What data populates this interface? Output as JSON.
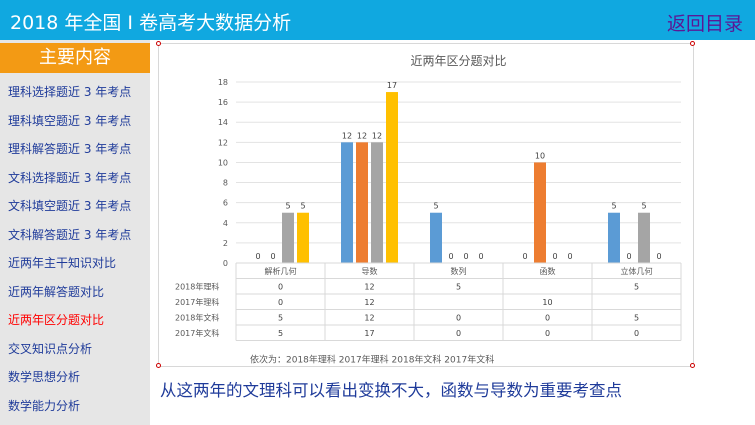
{
  "header": {
    "title": "2018 年全国 I 卷高考大数据分析",
    "back_label": "返回目录"
  },
  "sidebar": {
    "heading": "主要内容",
    "items": [
      {
        "label": "理科选择题近 3 年考点"
      },
      {
        "label": "理科填空题近 3 年考点"
      },
      {
        "label": "理科解答题近 3 年考点"
      },
      {
        "label": "文科选择题近 3 年考点"
      },
      {
        "label": "文科填空题近 3 年考点"
      },
      {
        "label": "文科解答题近 3 年考点"
      },
      {
        "label": "近两年主干知识对比"
      },
      {
        "label": "近两年解答题对比"
      },
      {
        "label": "近两年区分题对比",
        "active": true
      },
      {
        "label": "交叉知识点分析"
      },
      {
        "label": "数学思想分析"
      },
      {
        "label": "数学能力分析"
      }
    ]
  },
  "chart_data": {
    "type": "bar",
    "title": "近两年区分题对比",
    "categories": [
      "解析几何",
      "导数",
      "数列",
      "函数",
      "立体几何"
    ],
    "series": [
      {
        "name": "2018年理科",
        "color": "#5b9bd5",
        "values": [
          0,
          12,
          5,
          0,
          5
        ]
      },
      {
        "name": "2017年理科",
        "color": "#ed7d31",
        "values": [
          0,
          12,
          0,
          10,
          0
        ]
      },
      {
        "name": "2018年文科",
        "color": "#a5a5a5",
        "values": [
          5,
          12,
          0,
          0,
          5
        ]
      },
      {
        "name": "2017年文科",
        "color": "#ffc000",
        "values": [
          5,
          17,
          0,
          0,
          0
        ]
      }
    ],
    "ylim": [
      0,
      18
    ],
    "yticks": [
      0,
      2,
      4,
      6,
      8,
      10,
      12,
      14,
      16,
      18
    ],
    "grid": true,
    "data_table": [
      [
        "0",
        "12",
        "5",
        "",
        "5"
      ],
      [
        "0",
        "12",
        "",
        "10",
        ""
      ],
      [
        "5",
        "12",
        "0",
        "0",
        "5"
      ],
      [
        "5",
        "17",
        "0",
        "0",
        "0"
      ]
    ],
    "caption": "依次为：2018年理科   2017年理科   2018年文科   2017年文科"
  },
  "conclusion": "从这两年的文理科可以看出变换不大，函数与导数为重要考查点"
}
